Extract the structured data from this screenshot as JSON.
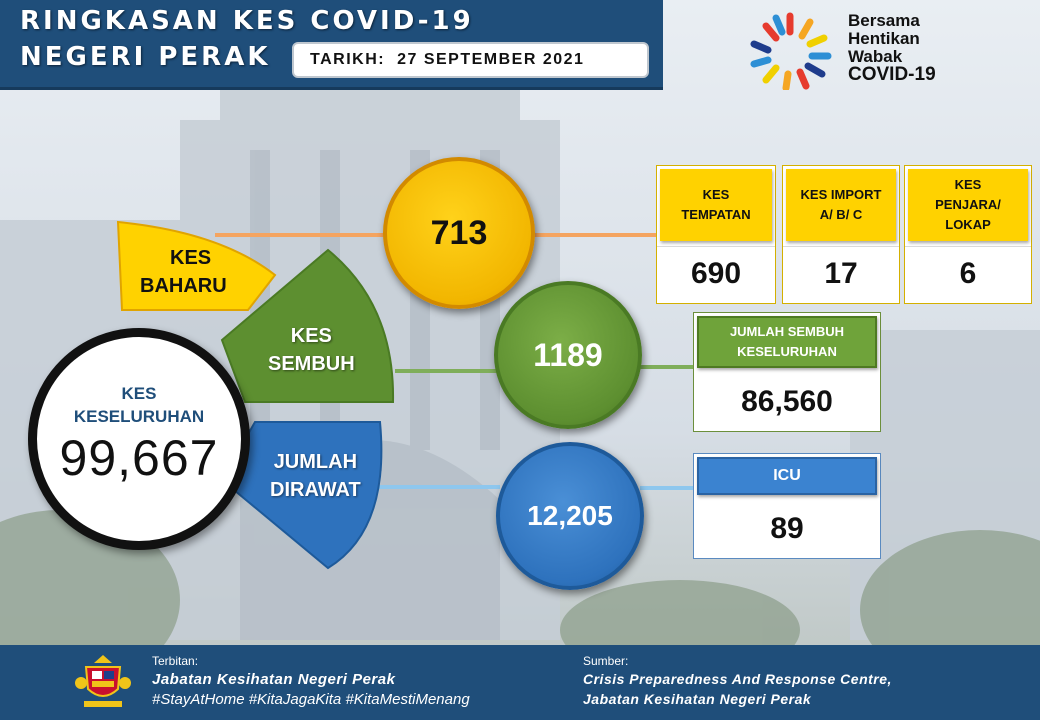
{
  "header": {
    "title_line1": "RINGKASAN KES COVID-19",
    "title_line2": "NEGERI PERAK",
    "date_label": "TARIKH:",
    "date_value": "27 SEPTEMBER 2021"
  },
  "logo": {
    "line1": "Bersama",
    "line2": "Hentikan",
    "line3": "Wabak",
    "line4": "COVID-19"
  },
  "total": {
    "label_line1": "KES",
    "label_line2": "KESELURUHAN",
    "value": "99,667"
  },
  "kes_baharu": {
    "label_line1": "KES",
    "label_line2": "BAHARU",
    "value": "713",
    "color": "#FFD200"
  },
  "kes_sembuh": {
    "label_line1": "KES",
    "label_line2": "SEMBUH",
    "value": "1189",
    "color": "#5D8F30"
  },
  "jumlah_dirawat": {
    "label_line1": "JUMLAH",
    "label_line2": "DIRAWAT",
    "value": "12,205",
    "color": "#2E72BD"
  },
  "breakdown": {
    "tempatan": {
      "label_line1": "KES",
      "label_line2": "TEMPATAN",
      "value": "690"
    },
    "import": {
      "label_line1": "KES IMPORT",
      "label_line2": "A/ B/ C",
      "value": "17"
    },
    "penjara": {
      "label_line1": "KES",
      "label_line2": "PENJARA/",
      "label_line3": "LOKAP",
      "value": "6"
    }
  },
  "sembuh_total": {
    "label_line1": "JUMLAH SEMBUH",
    "label_line2": "KESELURUHAN",
    "value": "86,560"
  },
  "icu": {
    "label": "ICU",
    "value": "89"
  },
  "footer": {
    "issued_label": "Terbitan:",
    "issuer": "Jabatan Kesihatan Negeri Perak",
    "hashtags": "#StayAtHome #KitaJagaKita #KitaMestiMenang",
    "source_label": "Sumber:",
    "source_line1": "Crisis Preparedness And Response Centre,",
    "source_line2": "Jabatan Kesihatan Negeri Perak"
  }
}
